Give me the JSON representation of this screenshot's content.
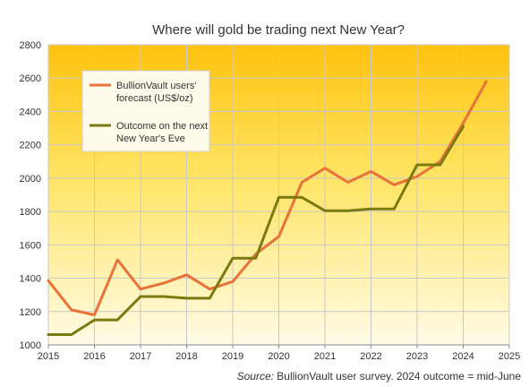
{
  "chart_data": {
    "type": "line",
    "title": "Where will gold be trading next New Year?",
    "xlabel": "",
    "ylabel": "",
    "xlim": [
      2015,
      2025
    ],
    "ylim": [
      1000,
      2800
    ],
    "x_ticks": [
      2015,
      2016,
      2017,
      2018,
      2019,
      2020,
      2021,
      2022,
      2023,
      2024,
      2025
    ],
    "y_ticks": [
      1000,
      1200,
      1400,
      1600,
      1800,
      2000,
      2200,
      2400,
      2600,
      2800
    ],
    "grid": true,
    "legend_position": "top-left",
    "series": [
      {
        "name": "BullionVault users' forecast (US$/oz)",
        "legend_lines": [
          "BullionVault users'",
          "forecast (US$/oz)"
        ],
        "color": "#e8733a",
        "x": [
          2015.0,
          2015.5,
          2016.0,
          2016.5,
          2017.0,
          2017.5,
          2018.0,
          2018.5,
          2019.0,
          2019.5,
          2020.0,
          2020.5,
          2021.0,
          2021.5,
          2022.0,
          2022.5,
          2023.0,
          2023.5,
          2024.0,
          2024.5
        ],
        "values": [
          1385,
          1210,
          1180,
          1510,
          1335,
          1370,
          1420,
          1335,
          1380,
          1545,
          1650,
          1975,
          2060,
          1975,
          2040,
          1960,
          2010,
          2100,
          2330,
          2580
        ]
      },
      {
        "name": "Outcome on the next New Year's Eve",
        "legend_lines": [
          "Outcome on the next",
          "New Year's Eve"
        ],
        "color": "#7a7a10",
        "x": [
          2015.0,
          2015.5,
          2016.0,
          2016.5,
          2017.0,
          2017.5,
          2018.0,
          2018.5,
          2019.0,
          2019.5,
          2020.0,
          2020.5,
          2021.0,
          2021.5,
          2022.0,
          2022.5,
          2023.0,
          2023.5,
          2024.0
        ],
        "values": [
          1062,
          1062,
          1150,
          1150,
          1290,
          1290,
          1280,
          1280,
          1520,
          1520,
          1885,
          1885,
          1805,
          1805,
          1815,
          1815,
          2080,
          2080,
          2310
        ]
      }
    ],
    "source": {
      "prefix": "Source:",
      "text": " BullionVault user survey. 2024 outcome = mid-June"
    },
    "colors": {
      "plot_top": "#ffc20e",
      "plot_bottom": "#fffbe6",
      "grid": "#c8c8c8",
      "axis": "#888888"
    }
  }
}
